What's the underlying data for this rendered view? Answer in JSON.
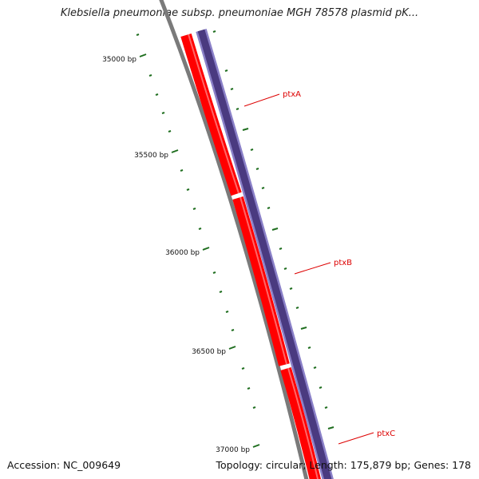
{
  "title": "Klebsiella pneumoniae subsp. pneumoniae MGH 78578 plasmid pK...",
  "scale": {
    "unit": " bp",
    "labels": [
      35000,
      35500,
      36000,
      36500,
      37000
    ]
  },
  "genes": [
    {
      "name": "ptxA",
      "strand": "plus"
    },
    {
      "name": "ptxB",
      "strand": "plus"
    },
    {
      "name": "ptxC",
      "strand": "plus"
    }
  ],
  "colors": {
    "backbone": "#7a7a7a",
    "gene_track": "#ff0000",
    "gene_track_highlight": "#ff8080",
    "orf_track": "#4a3a80",
    "orf_track_edge": "#8a80c8",
    "tick": "#1f6e1f",
    "label": "#dd0000"
  },
  "footer": {
    "accession": "Accession: NC_009649",
    "stats": "Topology: circular; Length: 175,879 bp; Genes: 178"
  }
}
